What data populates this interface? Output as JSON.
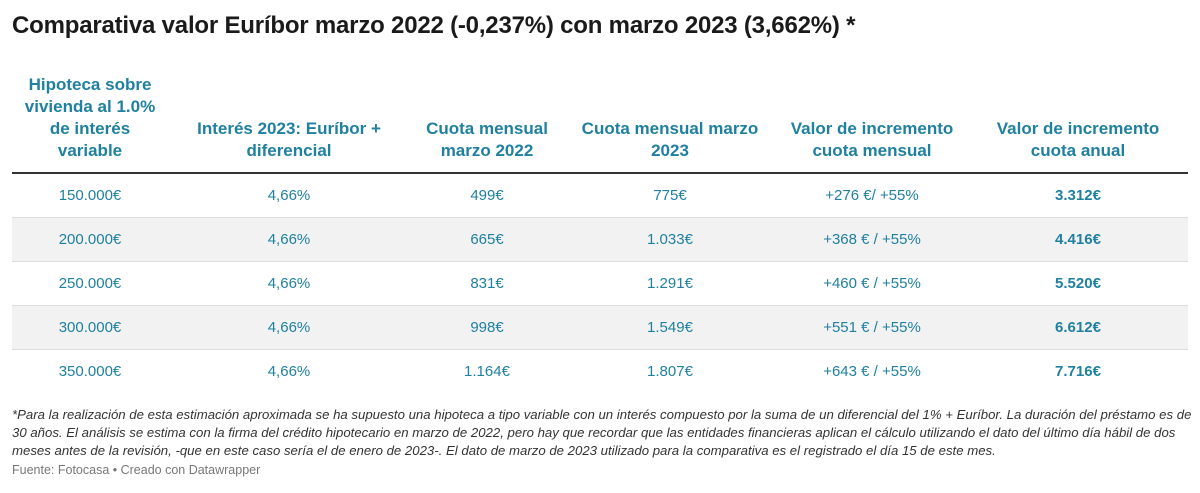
{
  "chart_data": {
    "type": "table",
    "title": "Comparativa valor Euríbor marzo 2022 (-0,237%) con marzo 2023 (3,662%) *",
    "columns": [
      "Hipoteca sobre vivienda al 1.0% de interés variable",
      "Interés 2023: Euríbor + diferencial",
      "Cuota mensual marzo 2022",
      "Cuota mensual marzo 2023",
      "Valor de incremento cuota mensual",
      "Valor de incremento cuota anual"
    ],
    "rows": [
      [
        "150.000€",
        "4,66%",
        "499€",
        "775€",
        "+276 €/ +55%",
        "3.312€"
      ],
      [
        "200.000€",
        "4,66%",
        "665€",
        "1.033€",
        "+368 € / +55%",
        "4.416€"
      ],
      [
        "250.000€",
        "4,66%",
        "831€",
        "1.291€",
        "+460 € / +55%",
        "5.520€"
      ],
      [
        "300.000€",
        "4,66%",
        "998€",
        "1.549€",
        "+551 € / +55%",
        "6.612€"
      ],
      [
        "350.000€",
        "4,66%",
        "1.164€",
        "1.807€",
        "+643 € / +55%",
        "7.716€"
      ]
    ],
    "note": "*Para la realización de esta estimación aproximada se ha supuesto una hipoteca a tipo variable con un interés compuesto por la suma de un diferencial del 1% + Euríbor. La duración del préstamo es de 30 años. El análisis se estima con la firma del crédito hipotecario en marzo de 2022, pero hay que recordar que las entidades financieras aplican el cálculo utilizando el dato del último día hábil de dos meses antes de la revisión, -que en este caso sería el de enero de 2023-. El dato de marzo de 2023 utilizado para la comparativa es el registrado el día 15 de este mes.",
    "source": "Fuente: Fotocasa • Creado con Datawrapper"
  },
  "colors": {
    "accent": "#1f80a0",
    "row_alt": "#f2f2f2",
    "title": "#1a1a1a"
  }
}
